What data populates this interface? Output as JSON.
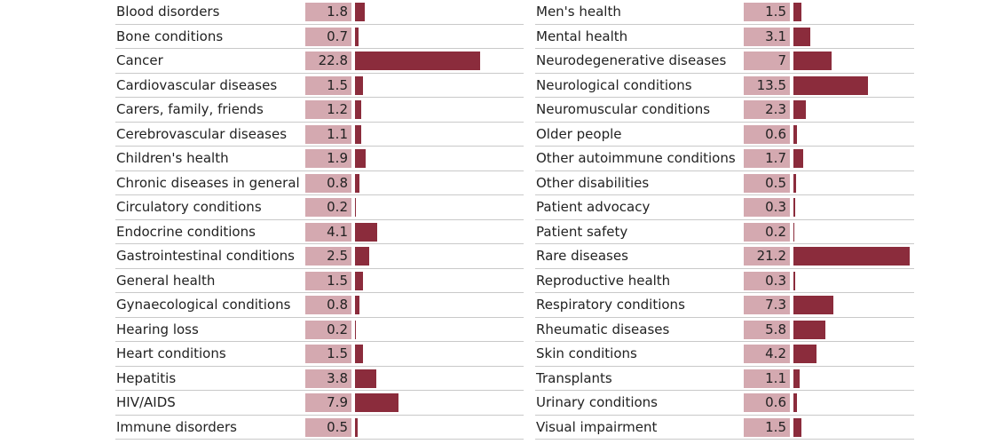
{
  "chart_data": {
    "type": "bar",
    "colors": {
      "bar": "#8b2c3c",
      "value_box": "#d4a9b0",
      "divider": "#c9c9c9"
    },
    "panels": [
      {
        "categories": [
          "Blood disorders",
          "Bone conditions",
          "Cancer",
          "Cardiovascular diseases",
          "Carers, family, friends",
          "Cerebrovascular diseases",
          "Children's health",
          "Chronic diseases in general",
          "Circulatory conditions",
          "Endocrine conditions",
          "Gastrointestinal conditions",
          "General health",
          "Gynaecological conditions",
          "Hearing loss",
          "Heart conditions",
          "Hepatitis",
          "HIV/AIDS",
          "Immune disorders"
        ],
        "values": [
          1.8,
          0.7,
          22.8,
          1.5,
          1.2,
          1.1,
          1.9,
          0.8,
          0.2,
          4.1,
          2.5,
          1.5,
          0.8,
          0.2,
          1.5,
          3.8,
          7.9,
          0.5
        ],
        "value_labels": [
          "1.8",
          "0.7",
          "22.8",
          "1.5",
          "1.2",
          "1.1",
          "1.9",
          "0.8",
          "0.2",
          "4.1",
          "2.5",
          "1.5",
          "0.8",
          "0.2",
          "1.5",
          "3.8",
          "7.9",
          "0.5"
        ]
      },
      {
        "categories": [
          "Men's health",
          "Mental health",
          "Neurodegenerative diseases",
          "Neurological conditions",
          "Neuromuscular conditions",
          "Older people",
          "Other autoimmune conditions",
          "Other disabilities",
          "Patient advocacy",
          "Patient safety",
          "Rare diseases",
          "Reproductive health",
          "Respiratory conditions",
          "Rheumatic diseases",
          "Skin conditions",
          "Transplants",
          "Urinary conditions",
          "Visual impairment"
        ],
        "values": [
          1.5,
          3.1,
          7,
          13.5,
          2.3,
          0.6,
          1.7,
          0.5,
          0.3,
          0.2,
          21.2,
          0.3,
          7.3,
          5.8,
          4.2,
          1.1,
          0.6,
          1.5
        ],
        "value_labels": [
          "1.5",
          "3.1",
          "7",
          "13.5",
          "2.3",
          "0.6",
          "1.7",
          "0.5",
          "0.3",
          "0.2",
          "21.2",
          "0.3",
          "7.3",
          "5.8",
          "4.2",
          "1.1",
          "0.6",
          "1.5"
        ]
      }
    ]
  }
}
